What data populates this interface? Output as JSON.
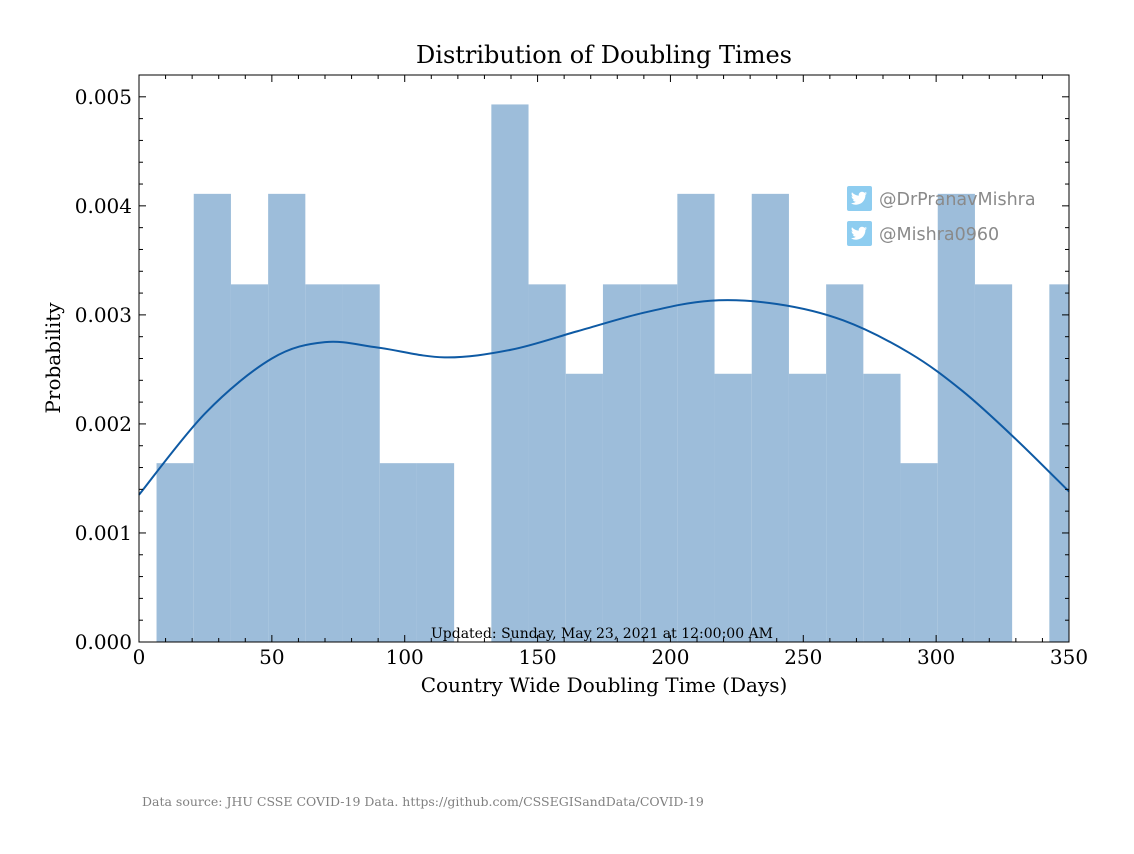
{
  "chart_data": {
    "type": "bar",
    "title": "Distribution of Doubling Times",
    "xlabel": "Country Wide Doubling Time (Days)",
    "ylabel": "Probability",
    "xlim": [
      0,
      350
    ],
    "ylim": [
      0,
      0.0052
    ],
    "xticks": [
      0,
      50,
      100,
      150,
      200,
      250,
      300,
      350
    ],
    "xtick_labels": [
      "0",
      "50",
      "100",
      "150",
      "200",
      "250",
      "300",
      "350"
    ],
    "yticks": [
      0,
      0.001,
      0.002,
      0.003,
      0.004,
      0.005
    ],
    "ytick_labels": [
      "0.000",
      "0.001",
      "0.002",
      "0.003",
      "0.004",
      "0.005"
    ],
    "histogram": {
      "bin_edges": [
        6.6,
        20.6,
        34.6,
        48.6,
        62.6,
        76.6,
        90.6,
        104.6,
        118.6,
        132.6,
        146.6,
        160.6,
        174.6,
        188.6,
        202.6,
        216.6,
        230.6,
        244.6,
        258.6,
        272.6,
        286.6,
        300.6,
        314.6,
        328.6,
        342.6,
        356.6
      ],
      "densities": [
        0.00164,
        0.00411,
        0.00328,
        0.00411,
        0.00328,
        0.00328,
        0.00164,
        0.00164,
        0.0,
        0.00493,
        0.00328,
        0.00246,
        0.00328,
        0.00328,
        0.00411,
        0.00246,
        0.00411,
        0.00246,
        0.00328,
        0.00246,
        0.00164,
        0.00411,
        0.00328,
        0.0,
        0.00328
      ],
      "color": "#9dbdda"
    },
    "kde": {
      "x": [
        0,
        25,
        50,
        70,
        90,
        115,
        140,
        165,
        190,
        215,
        240,
        265,
        290,
        310,
        330,
        350
      ],
      "y": [
        0.00135,
        0.0021,
        0.0026,
        0.00275,
        0.0027,
        0.00261,
        0.00268,
        0.00285,
        0.00302,
        0.00313,
        0.0031,
        0.00295,
        0.00265,
        0.0023,
        0.00186,
        0.00138
      ],
      "color": "#0e5aa4"
    },
    "grid": false
  },
  "annotations": {
    "updated": "Updated: Sunday, May 23, 2021 at 12:00:00 AM",
    "source": "Data source: JHU CSSE COVID-19 Data. https://github.com/CSSEGISandData/COVID-19"
  },
  "social": {
    "handles": [
      {
        "icon": "twitter-icon",
        "text": "@DrPranavMishra"
      },
      {
        "icon": "twitter-icon",
        "text": "@Mishra0960"
      }
    ],
    "icon_color": "#8ecdf0"
  }
}
